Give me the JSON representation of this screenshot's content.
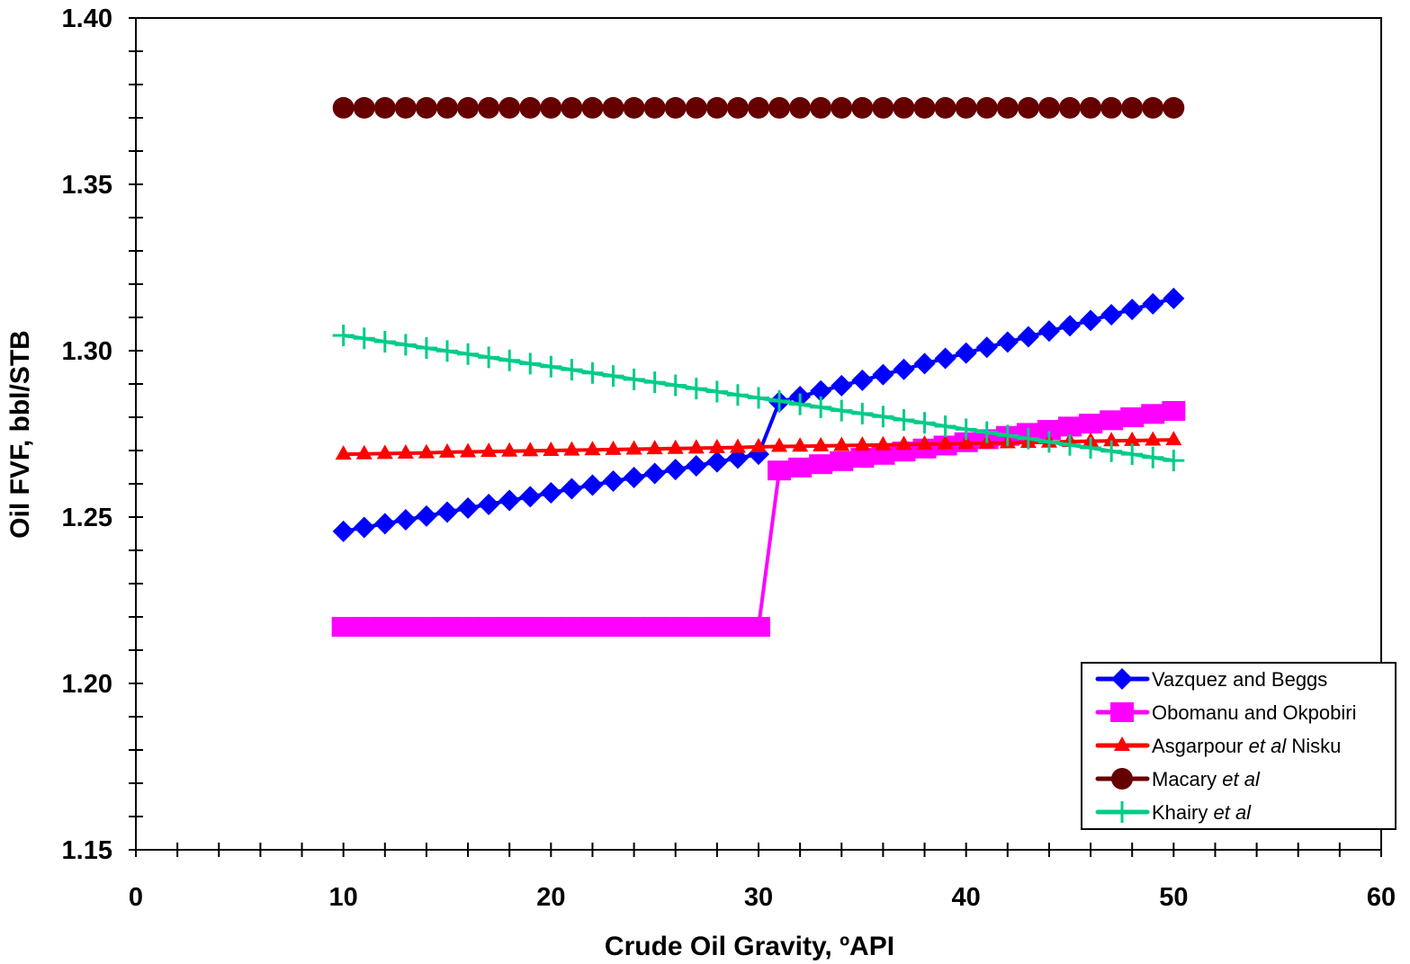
{
  "chart_data": {
    "type": "line",
    "title": "",
    "xlabel": "Crude Oil Gravity, ºAPI",
    "ylabel": "Oil FVF, bbl/STB",
    "xlim": [
      0,
      60
    ],
    "ylim": [
      1.15,
      1.4
    ],
    "xticks": [
      "0",
      "10",
      "20",
      "30",
      "40",
      "50",
      "60"
    ],
    "yticks": [
      "1.15",
      "1.20",
      "1.25",
      "1.30",
      "1.35",
      "1.40"
    ],
    "grid": false,
    "legend_position": "bottom-right",
    "x": [
      10,
      11,
      12,
      13,
      14,
      15,
      16,
      17,
      18,
      19,
      20,
      21,
      22,
      23,
      24,
      25,
      26,
      27,
      28,
      29,
      30,
      31,
      32,
      33,
      34,
      35,
      36,
      37,
      38,
      39,
      40,
      41,
      42,
      43,
      44,
      45,
      46,
      47,
      48,
      49,
      50
    ],
    "series": [
      {
        "name": "Vazquez and Beggs",
        "color": "#0000ff",
        "marker": "diamond",
        "values": [
          1.2457,
          1.2469,
          1.248,
          1.2492,
          1.2503,
          1.2515,
          1.2527,
          1.2538,
          1.255,
          1.2561,
          1.2573,
          1.2585,
          1.2596,
          1.2608,
          1.2619,
          1.2631,
          1.2643,
          1.2654,
          1.2666,
          1.2677,
          1.2689,
          1.2846,
          1.2862,
          1.2879,
          1.2895,
          1.2911,
          1.2928,
          1.2944,
          1.2961,
          1.2977,
          1.2993,
          1.301,
          1.3026,
          1.3042,
          1.3059,
          1.3075,
          1.3091,
          1.3108,
          1.3124,
          1.3141,
          1.3157
        ]
      },
      {
        "name": "Obomanu and Okpobiri",
        "color": "#ff00ff",
        "marker": "square",
        "values": [
          1.217,
          1.217,
          1.217,
          1.217,
          1.217,
          1.217,
          1.217,
          1.217,
          1.217,
          1.217,
          1.217,
          1.217,
          1.217,
          1.217,
          1.217,
          1.217,
          1.217,
          1.217,
          1.217,
          1.217,
          1.217,
          1.264,
          1.2649,
          1.2659,
          1.2668,
          1.2678,
          1.2687,
          1.2697,
          1.2706,
          1.2715,
          1.2725,
          1.2734,
          1.2744,
          1.2753,
          1.2762,
          1.2772,
          1.2781,
          1.2791,
          1.28,
          1.281,
          1.2819
        ]
      },
      {
        "name": "Asgarpour et al Nisku",
        "color": "#ff0000",
        "marker": "triangle",
        "values": [
          1.2689,
          1.269,
          1.2691,
          1.2692,
          1.2693,
          1.2695,
          1.2696,
          1.2697,
          1.2698,
          1.2699,
          1.27,
          1.2701,
          1.2702,
          1.2703,
          1.2704,
          1.2705,
          1.2706,
          1.2707,
          1.2708,
          1.2709,
          1.2711,
          1.2712,
          1.2713,
          1.2714,
          1.2715,
          1.2716,
          1.2717,
          1.2718,
          1.2719,
          1.272,
          1.2721,
          1.2722,
          1.2723,
          1.2724,
          1.2725,
          1.2727,
          1.2728,
          1.2729,
          1.273,
          1.2731,
          1.2732
        ]
      },
      {
        "name": "Macary et al",
        "color": "#660000",
        "marker": "circle",
        "values": [
          1.373,
          1.373,
          1.373,
          1.373,
          1.373,
          1.373,
          1.373,
          1.373,
          1.373,
          1.373,
          1.373,
          1.373,
          1.373,
          1.373,
          1.373,
          1.373,
          1.373,
          1.373,
          1.373,
          1.373,
          1.373,
          1.373,
          1.373,
          1.373,
          1.373,
          1.373,
          1.373,
          1.373,
          1.373,
          1.373,
          1.373,
          1.373,
          1.373,
          1.373,
          1.373,
          1.373,
          1.373,
          1.373,
          1.373,
          1.373,
          1.373
        ]
      },
      {
        "name": "Khairy et al",
        "color": "#00cc88",
        "marker": "plus",
        "values": [
          1.3046,
          1.3037,
          1.3027,
          1.3018,
          1.3008,
          1.2999,
          1.299,
          1.298,
          1.2971,
          1.2961,
          1.2952,
          1.2943,
          1.2933,
          1.2924,
          1.2914,
          1.2905,
          1.2896,
          1.2886,
          1.2877,
          1.2867,
          1.2858,
          1.2849,
          1.2839,
          1.283,
          1.282,
          1.2811,
          1.2802,
          1.2792,
          1.2783,
          1.2773,
          1.2764,
          1.2755,
          1.2745,
          1.2736,
          1.2726,
          1.2717,
          1.2708,
          1.2698,
          1.2689,
          1.2679,
          1.267
        ]
      }
    ]
  }
}
